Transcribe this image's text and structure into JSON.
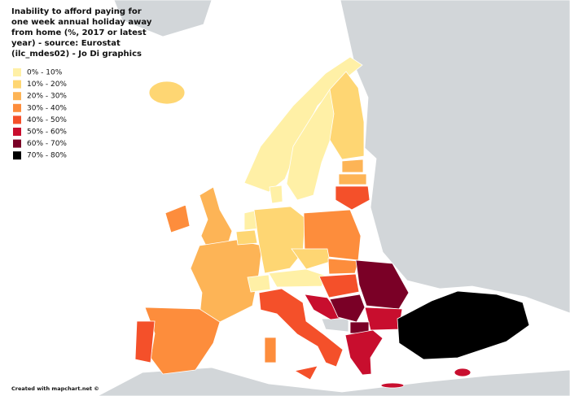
{
  "title_lines": [
    "Inability to afford paying for",
    "one week annual holiday away",
    "from home (%, 2017 or latest",
    "year) - source: Eurostat",
    "(ilc_mdes02) - Jo Di graphics"
  ],
  "legend": [
    {
      "label": "0% - 10%",
      "color": "#fff0a6"
    },
    {
      "label": "10% - 20%",
      "color": "#fed673"
    },
    {
      "label": "20% - 30%",
      "color": "#fdb456"
    },
    {
      "label": "30% - 40%",
      "color": "#fd8d3c"
    },
    {
      "label": "40% - 50%",
      "color": "#f4502a"
    },
    {
      "label": "50% - 60%",
      "color": "#c80e2e"
    },
    {
      "label": "60% - 70%",
      "color": "#7a0026"
    },
    {
      "label": "70% - 80%",
      "color": "#000000"
    }
  ],
  "credit": "Created with mapchart.net ©"
}
